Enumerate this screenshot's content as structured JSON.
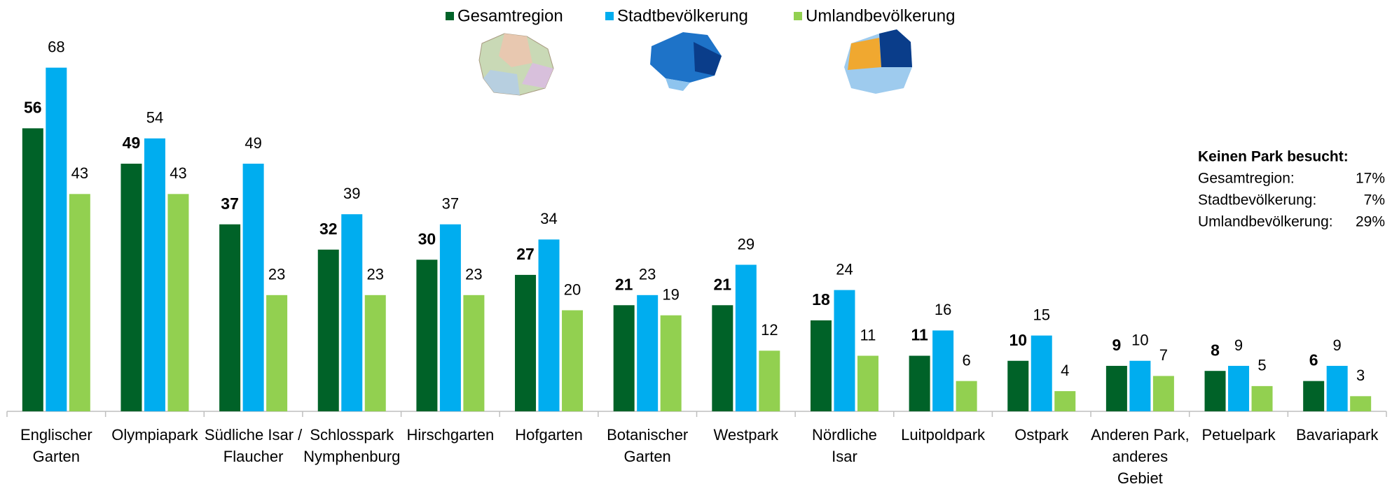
{
  "chart_data": {
    "type": "bar",
    "categories": [
      "Englischer\nGarten",
      "Olympiapark",
      "Südliche Isar /\nFlaucher",
      "Schlosspark\nNymphenburg",
      "Hirschgarten",
      "Hofgarten",
      "Botanischer\nGarten",
      "Westpark",
      "Nördliche\nIsar",
      "Luitpoldpark",
      "Ostpark",
      "Anderen Park,\nanderes\nGebiet",
      "Petuelpark",
      "Bavariapark"
    ],
    "series": [
      {
        "name": "Gesamtregion",
        "color": "#006228",
        "values": [
          56,
          49,
          37,
          32,
          30,
          27,
          21,
          21,
          18,
          11,
          10,
          9,
          8,
          6
        ]
      },
      {
        "name": "Stadtbevölkerung",
        "color": "#00adef",
        "values": [
          68,
          54,
          49,
          39,
          37,
          34,
          23,
          29,
          24,
          16,
          15,
          10,
          9,
          9
        ]
      },
      {
        "name": "Umlandbevölkerung",
        "color": "#92d050",
        "values": [
          43,
          43,
          23,
          23,
          23,
          20,
          19,
          12,
          11,
          6,
          4,
          7,
          5,
          3
        ]
      }
    ],
    "ylim": [
      0,
      80
    ],
    "legend": "top",
    "annotation": {
      "title": "Keinen Park besucht:",
      "rows": [
        {
          "label": "Gesamtregion:",
          "value": "17%"
        },
        {
          "label": "Stadtbevölkerung:",
          "value": "7%"
        },
        {
          "label": "Umlandbevölkerung:",
          "value": "29%"
        }
      ]
    }
  }
}
